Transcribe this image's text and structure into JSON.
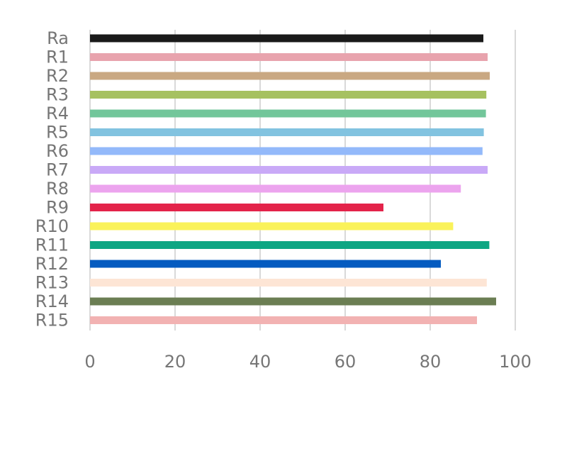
{
  "chart_data": {
    "type": "bar",
    "orientation": "horizontal",
    "title": "",
    "xlabel": "",
    "ylabel": "",
    "xlim": [
      0,
      100
    ],
    "x_ticks": [
      0,
      20,
      40,
      60,
      80,
      100
    ],
    "x_tick_labels": [
      "0",
      "20",
      "40",
      "60",
      "80",
      "100"
    ],
    "grid": "vertical",
    "legend": "none",
    "categories": [
      "Ra",
      "R1",
      "R2",
      "R3",
      "R4",
      "R5",
      "R6",
      "R7",
      "R8",
      "R9",
      "R10",
      "R11",
      "R12",
      "R13",
      "R14",
      "R15"
    ],
    "values": [
      92.5,
      93.5,
      94.0,
      93.2,
      93.1,
      92.6,
      92.3,
      93.5,
      87.2,
      69.0,
      85.4,
      93.9,
      82.5,
      93.3,
      95.5,
      91.0
    ],
    "colors": [
      "#1a1a1a",
      "#e8a3ad",
      "#c9a882",
      "#a6c160",
      "#72c69a",
      "#82c3e0",
      "#93b9fa",
      "#c9a9f7",
      "#eca4ee",
      "#e3234a",
      "#faf25a",
      "#0ea683",
      "#045bc0",
      "#fde5d5",
      "#6b7e53",
      "#f2b2b2"
    ]
  }
}
